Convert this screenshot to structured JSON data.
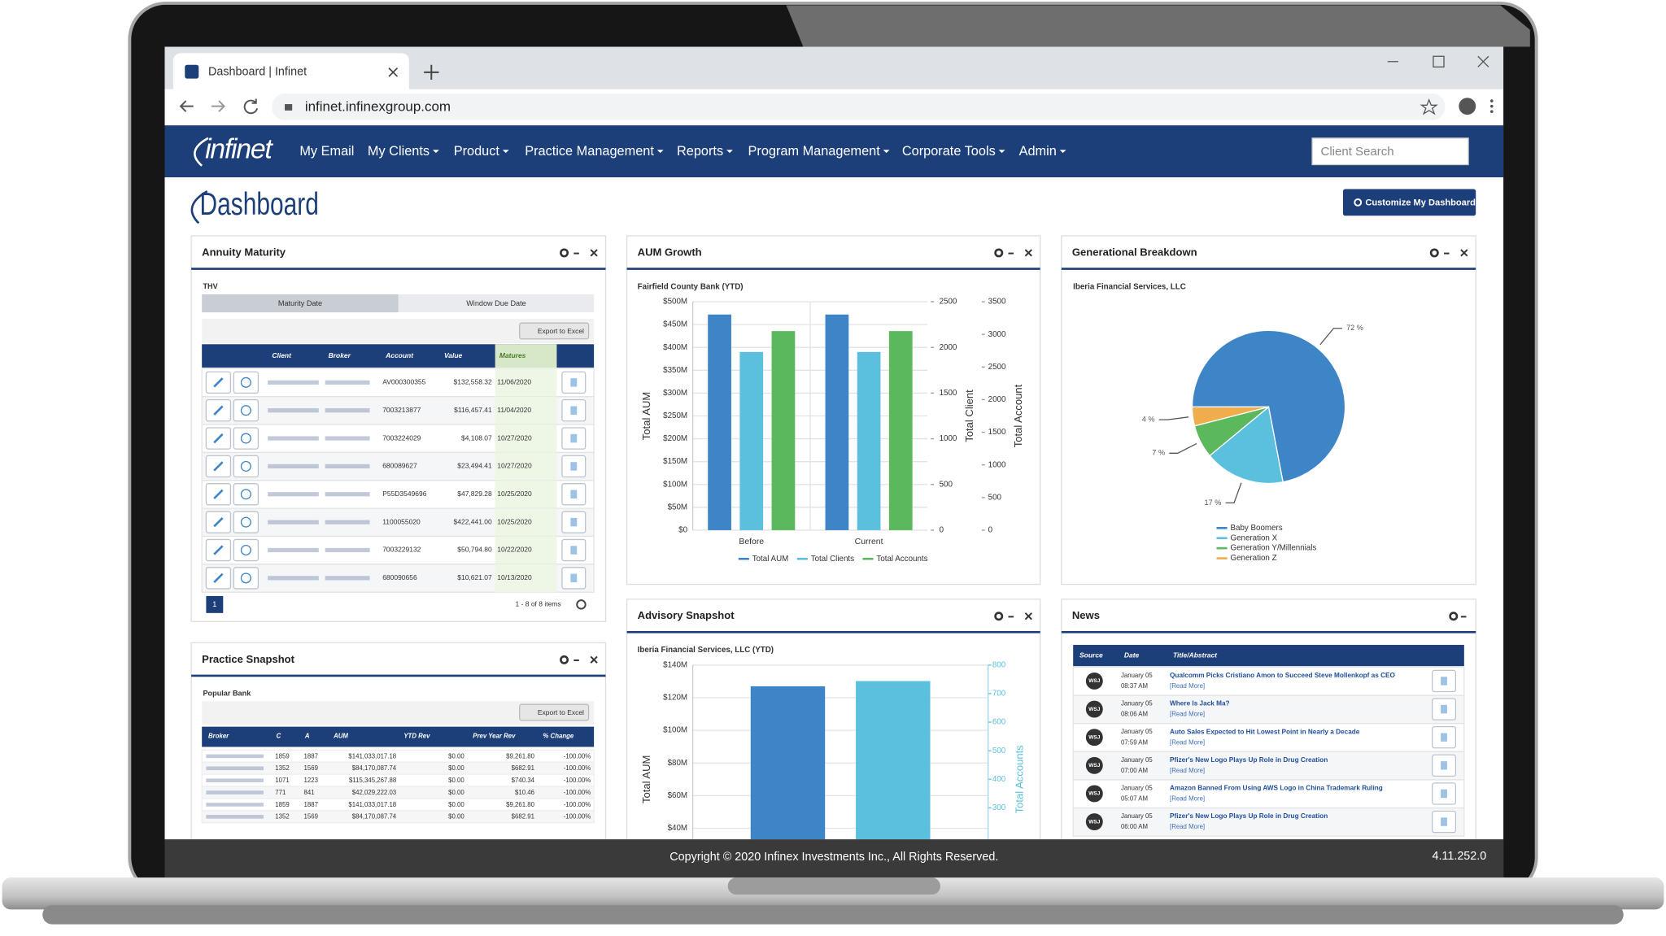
{
  "browser": {
    "tab_title": "Dashboard | Infinet",
    "url": "infinet.infinexgroup.com"
  },
  "nav": {
    "logo": "infinet",
    "items": [
      {
        "label": "My Email",
        "dropdown": false
      },
      {
        "label": "My Clients",
        "dropdown": true
      },
      {
        "label": "Product",
        "dropdown": true
      },
      {
        "label": "Practice Management",
        "dropdown": true
      },
      {
        "label": "Reports",
        "dropdown": true
      },
      {
        "label": "Program Management",
        "dropdown": true
      },
      {
        "label": "Corporate Tools",
        "dropdown": true
      },
      {
        "label": "Admin",
        "dropdown": true
      }
    ],
    "search_placeholder": "Client Search"
  },
  "page": {
    "title": "Dashboard",
    "customize_button": "Customize My Dashboard"
  },
  "annuity_maturity": {
    "title": "Annuity Maturity",
    "label": "THV",
    "tabs": [
      "Maturity Date",
      "Window Due Date"
    ],
    "export": "Export to Excel",
    "columns": [
      "Client",
      "Broker",
      "Account",
      "Value",
      "Matures"
    ],
    "rows": [
      [
        "AV000300355",
        "$132,558.32",
        "11/06/2020"
      ],
      [
        "7003213877",
        "$116,457.41",
        "11/04/2020"
      ],
      [
        "7003224029",
        "$4,108.07",
        "10/27/2020"
      ],
      [
        "680089627",
        "$23,494.41",
        "10/27/2020"
      ],
      [
        "P55D3549696",
        "$47,829.28",
        "10/25/2020"
      ],
      [
        "1100055020",
        "$422,441.00",
        "10/25/2020"
      ],
      [
        "7003229132",
        "$50,794.80",
        "10/22/2020"
      ],
      [
        "680090656",
        "$10,621.07",
        "10/13/2020"
      ]
    ],
    "page": "1",
    "pager_info": "1 - 8 of 8 items"
  },
  "chart_data": [
    {
      "type": "bar",
      "title": "AUM Growth",
      "subtitle": "Fairfield County Bank (YTD)",
      "categories": [
        "Before",
        "Current"
      ],
      "series": [
        {
          "name": "Total AUM",
          "color": "#3d85c6",
          "values": [
            472,
            472
          ]
        },
        {
          "name": "Total Clients",
          "color": "#5bc0de",
          "values": [
            1950,
            1950
          ],
          "axis": "y2"
        },
        {
          "name": "Total Accounts",
          "color": "#5cb85c",
          "values": [
            3050,
            3050
          ],
          "axis": "y3"
        }
      ],
      "ylim": [
        0,
        500
      ],
      "yticks": [
        {
          "value": 0,
          "label": "$0"
        },
        {
          "value": 50,
          "label": "$50M"
        },
        {
          "value": 100,
          "label": "$100M"
        },
        {
          "value": 150,
          "label": "$150M"
        },
        {
          "value": 200,
          "label": "$200M"
        },
        {
          "value": 250,
          "label": "$250M"
        },
        {
          "value": 300,
          "label": "$300M"
        },
        {
          "value": 350,
          "label": "$350M"
        },
        {
          "value": 400,
          "label": "$400M"
        },
        {
          "value": 450,
          "label": "$450M"
        },
        {
          "value": 500,
          "label": "$500M"
        }
      ],
      "y2lim": [
        0,
        2500
      ],
      "y2ticks": [
        0,
        500,
        1000,
        1500,
        2000,
        2500
      ],
      "y3lim": [
        0,
        3500
      ],
      "y3ticks": [
        0,
        500,
        1000,
        1500,
        2000,
        2500,
        3000,
        3500
      ],
      "ylabel": "Total AUM",
      "y2label": "Total Client",
      "y3label": "Total Account",
      "grid": true,
      "legend": "bottom"
    },
    {
      "type": "pie",
      "title": "Generational Breakdown",
      "subtitle": "Iberia Financial Services, LLC",
      "categories": [
        "Baby Boomers",
        "Generation X",
        "Generation Y/Millennials",
        "Generation Z"
      ],
      "values": [
        72,
        17,
        7,
        4
      ],
      "value_labels": [
        "72 %",
        "17 %",
        "7 %",
        "4 %"
      ],
      "colors": [
        "#3d85c6",
        "#5bc0de",
        "#5cb85c",
        "#f0ad4e"
      ],
      "legend": "bottom"
    },
    {
      "type": "bar",
      "title": "Advisory Snapshot",
      "subtitle": "Iberia Financial Services, LLC (YTD)",
      "categories": [
        null
      ],
      "series": [
        {
          "color": "#3d85c6",
          "values": [
            127
          ]
        },
        {
          "color": "#5bc0de",
          "values": [
            744
          ],
          "axis": "y2"
        }
      ],
      "ylim": [
        0,
        140
      ],
      "yticks": [
        {
          "value": 40,
          "label": "$40M"
        },
        {
          "value": 60,
          "label": "$60M"
        },
        {
          "value": 80,
          "label": "$80M"
        },
        {
          "value": 100,
          "label": "$100M"
        },
        {
          "value": 120,
          "label": "$120M"
        },
        {
          "value": 140,
          "label": "$140M"
        }
      ],
      "y2lim": [
        0,
        800
      ],
      "y2ticks": [
        300,
        400,
        500,
        600,
        700,
        800
      ],
      "ylabel": "Total AUM",
      "y2label": "Total Accounts",
      "grid": true
    }
  ],
  "news": {
    "title": "News",
    "columns": [
      "Source",
      "Date",
      "Title/Abstract"
    ],
    "rows": [
      {
        "source": "WSJ",
        "date": "January 05",
        "time": "08:37 AM",
        "title": "Qualcomm Picks Cristiano Amon to Succeed Steve Mollenkopf as CEO",
        "link": "[Read More]"
      },
      {
        "source": "WSJ",
        "date": "January 05",
        "time": "08:06 AM",
        "title": "Where Is Jack Ma?",
        "link": "[Read More]"
      },
      {
        "source": "WSJ",
        "date": "January 05",
        "time": "07:59 AM",
        "title": "Auto Sales Expected to Hit Lowest Point in Nearly a Decade",
        "link": "[Read More]"
      },
      {
        "source": "WSJ",
        "date": "January 05",
        "time": "07:00 AM",
        "title": "Pfizer's New Logo Plays Up Role in Drug Creation",
        "link": "[Read More]"
      },
      {
        "source": "WSJ",
        "date": "January 05",
        "time": "05:07 AM",
        "title": "Amazon Banned From Using AWS Logo in China Trademark Ruling",
        "link": "[Read More]"
      },
      {
        "source": "WSJ",
        "date": "January 05",
        "time": "06:00 AM",
        "title": "Pfizer's New Logo Plays Up Role in Drug Creation",
        "link": "[Read More]"
      }
    ]
  },
  "practice_snapshot": {
    "title": "Practice Snapshot",
    "label": "Popular Bank",
    "export": "Export to Excel",
    "columns": [
      "Broker",
      "C",
      "A",
      "AUM",
      "YTD Rev",
      "Prev Year Rev",
      "% Change"
    ],
    "rows": [
      [
        "1859",
        "1887",
        "$141,033,017.18",
        "$0.00",
        "$9,261.80",
        "-100.00%"
      ],
      [
        "1352",
        "1569",
        "$84,170,087.74",
        "$0.00",
        "$682.91",
        "-100.00%"
      ],
      [
        "1071",
        "1223",
        "$115,345,267.88",
        "$0.00",
        "$740.34",
        "-100.00%"
      ],
      [
        "771",
        "841",
        "$42,029,222.03",
        "$0.00",
        "$10.46",
        "-100.00%"
      ],
      [
        "1859",
        "1887",
        "$141,033,017.18",
        "$0.00",
        "$9,261.80",
        "-100.00%"
      ],
      [
        "1352",
        "1569",
        "$84,170,087.74",
        "$0.00",
        "$682.91",
        "-100.00%"
      ]
    ]
  },
  "footer": {
    "copyright": "Copyright © 2020 Infinex Investments Inc., All Rights Reserved.",
    "version": "4.11.252.0"
  }
}
